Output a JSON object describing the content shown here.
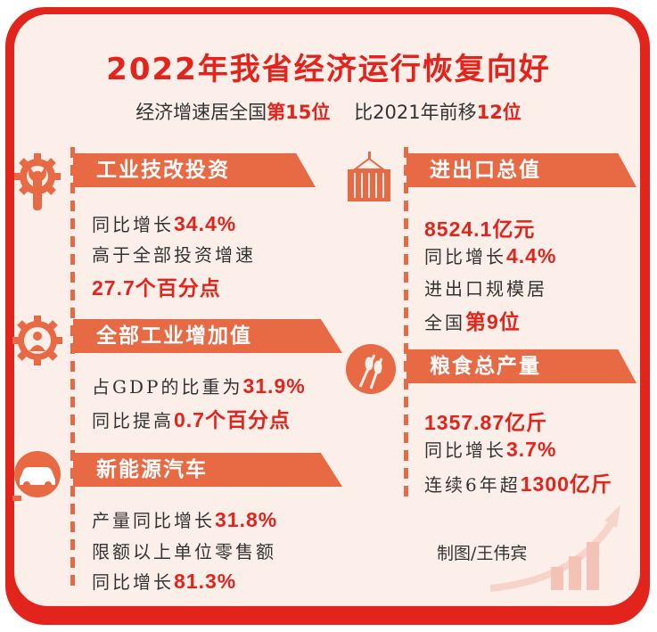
{
  "title": "2022年我省经济运行恢复向好",
  "subtitle": {
    "a": "经济增速居全国",
    "b": "第15位",
    "c": "比2021年前移",
    "d": "12位"
  },
  "sections": [
    {
      "title": "工业技改投资",
      "icon": "gear-wrench-icon",
      "lines": [
        {
          "t": "同比增长",
          "v": "34.4%"
        },
        {
          "t": "高于全部投资增速",
          "v": ""
        },
        {
          "t": "",
          "v": "27.7个百分点"
        }
      ]
    },
    {
      "title": "全部工业增加值",
      "icon": "gear-worker-icon",
      "lines": [
        {
          "t": "占GDP的比重为",
          "v": "31.9%"
        },
        {
          "t": "同比提高",
          "v": "0.7个百分点"
        }
      ]
    },
    {
      "title": "新能源汽车",
      "icon": "electric-car-icon",
      "lines": [
        {
          "t": "产量同比增长",
          "v": "31.8%"
        },
        {
          "t": "限额以上单位零售额",
          "v": ""
        },
        {
          "t": "同比增长",
          "v": "81.3%"
        }
      ]
    },
    {
      "title": "进出口总值",
      "icon": "container-crane-icon",
      "lines": [
        {
          "t": "",
          "v": "8524.1亿元"
        },
        {
          "t": "同比增长",
          "v": "4.4%"
        },
        {
          "t": "进出口规模居",
          "v": ""
        },
        {
          "t": "全国",
          "v": "第9位"
        }
      ]
    },
    {
      "title": "粮食总产量",
      "icon": "wheat-icon",
      "lines": [
        {
          "t": "",
          "v": "1357.87亿斤"
        },
        {
          "t": "同比增长",
          "v": "3.7%"
        },
        {
          "t": "连续6年超",
          "v": "1300亿斤"
        }
      ]
    }
  ],
  "credit": "制图/王伟宾",
  "colors": {
    "red": "#e3241c",
    "orange": "#e86a45",
    "background": "#fcefe9"
  }
}
